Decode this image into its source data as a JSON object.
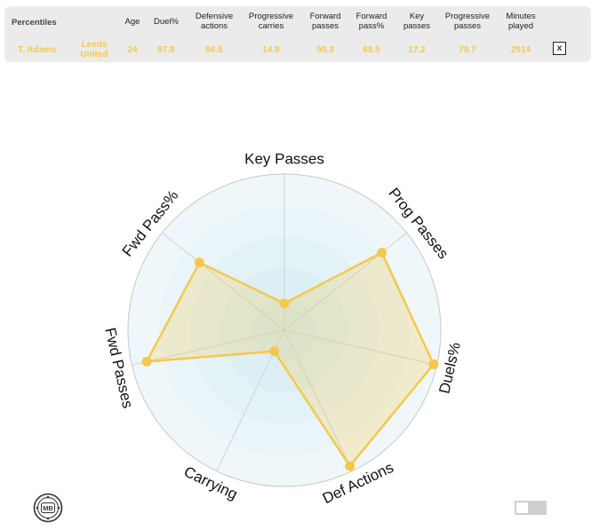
{
  "table": {
    "corner_label": "Percentiles",
    "headers": [
      {
        "key": "age",
        "line1": "Age",
        "line2": ""
      },
      {
        "key": "duel",
        "line1": "Duel%",
        "line2": ""
      },
      {
        "key": "def",
        "line1": "Defensive",
        "line2": "actions"
      },
      {
        "key": "progcarry",
        "line1": "Progressive",
        "line2": "carries"
      },
      {
        "key": "fwd",
        "line1": "Forward",
        "line2": "passes"
      },
      {
        "key": "fwdpct",
        "line1": "Forward",
        "line2": "pass%"
      },
      {
        "key": "key",
        "line1": "Key",
        "line2": "passes"
      },
      {
        "key": "progpass",
        "line1": "Progressive",
        "line2": "passes"
      },
      {
        "key": "mins",
        "line1": "Minutes",
        "line2": "played"
      }
    ],
    "row": {
      "player": "T. Adams",
      "team_line1": "Leeds",
      "team_line2": "United",
      "values": [
        "24",
        "97.8",
        "96.5",
        "14.9",
        "90.3",
        "69.5",
        "17.2",
        "79.7",
        "2914"
      ]
    },
    "close_label": "x"
  },
  "chart_data": {
    "type": "radar",
    "axes": [
      "Key Passes",
      "Prog Passes",
      "Duels%",
      "Def Actions",
      "Carrying",
      "Fwd Passes",
      "Fwd Pass%"
    ],
    "values": [
      17.2,
      79.7,
      97.8,
      96.5,
      14.9,
      90.3,
      69.5
    ],
    "range": [
      0,
      100
    ],
    "fill_color": "#f5c84c",
    "fill_opacity": 0.25,
    "line_color": "#f5c84c",
    "ring_colors": [
      "#d6edf3",
      "#dceff5",
      "#e3f2f7",
      "#eaf5f9",
      "#f0f7fa"
    ],
    "grid": true
  },
  "logo": {
    "text": "MB"
  },
  "colors": {
    "accent": "#f5c84c",
    "panel": "#ebebeb"
  }
}
